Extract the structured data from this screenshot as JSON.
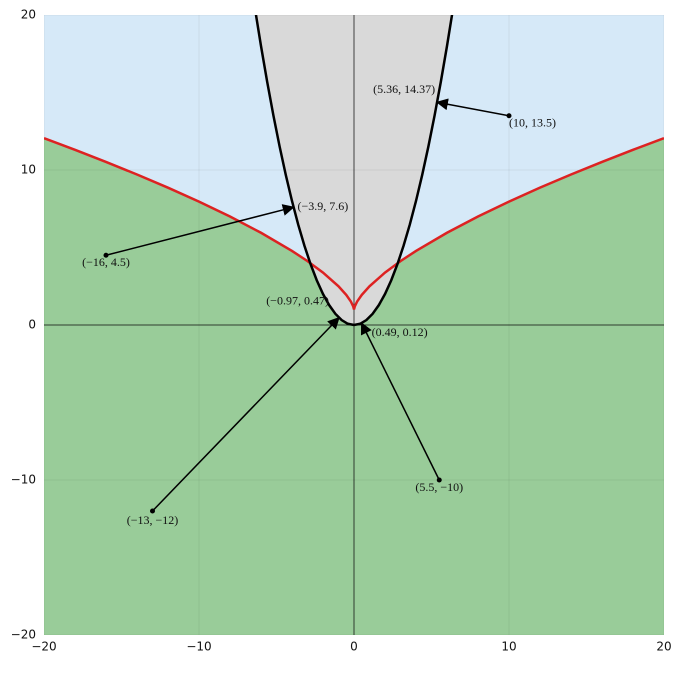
{
  "chart_data": {
    "type": "line",
    "xlim": [
      -20,
      20
    ],
    "ylim": [
      -20,
      20
    ],
    "xticks": [
      {
        "value": -20,
        "label": "−20"
      },
      {
        "value": -10,
        "label": "−10"
      },
      0,
      10,
      20
    ],
    "yticks": [
      {
        "value": -20,
        "label": "−20"
      },
      {
        "value": -10,
        "label": "−10"
      },
      0,
      10,
      20
    ],
    "grid": true,
    "background_color": "#99cc99",
    "series": [
      {
        "color": "#dd2222",
        "fill": "#d6e9f8",
        "fill_side": "above",
        "x": [
          -20,
          -18,
          -16,
          -14,
          -12,
          -10,
          -8,
          -6,
          -4,
          -3,
          -2,
          -1,
          -0.5,
          -0.2,
          -0.05,
          0,
          0.05,
          0.2,
          0.5,
          1,
          2,
          3,
          4,
          6,
          8,
          10,
          12,
          14,
          16,
          18,
          20
        ],
        "y": [
          12.05,
          11.3,
          10.52,
          9.71,
          8.86,
          7.96,
          7,
          5.95,
          4.78,
          4.12,
          3.38,
          2.5,
          1.94,
          1.51,
          1.2,
          1.0,
          1.2,
          1.51,
          1.94,
          2.5,
          3.38,
          4.12,
          4.78,
          5.95,
          7,
          7.96,
          8.86,
          9.71,
          10.52,
          11.3,
          12.05
        ]
      },
      {
        "color": "#000000",
        "fill": "#d9d9d9",
        "fill_side": "inside",
        "x": [
          -6.4,
          -6.0,
          -5.6,
          -5.2,
          -4.8,
          -4.4,
          -4.0,
          -3.6,
          -3.2,
          -2.8,
          -2.4,
          -2.0,
          -1.6,
          -1.2,
          -0.8,
          -0.4,
          0,
          0.4,
          0.8,
          1.2,
          1.6,
          2.0,
          2.4,
          2.8,
          3.2,
          3.6,
          4.0,
          4.4,
          4.8,
          5.2,
          5.6,
          6.0,
          6.4
        ],
        "y": [
          20.48,
          18,
          15.68,
          13.52,
          11.52,
          9.68,
          8,
          6.48,
          5.12,
          3.92,
          2.88,
          2,
          1.28,
          0.72,
          0.32,
          0.08,
          0,
          0.08,
          0.32,
          0.72,
          1.28,
          2,
          2.88,
          3.92,
          5.12,
          6.48,
          8,
          9.68,
          11.52,
          13.52,
          15.68,
          18,
          20.48
        ]
      }
    ],
    "annotations": [
      {
        "target": {
          "x": -3.9,
          "y": 7.6,
          "label": "(−3.9, 7.6)"
        },
        "source": {
          "x": -16,
          "y": 4.5,
          "label": "(−16, 4.5)"
        }
      },
      {
        "target": {
          "x": 5.36,
          "y": 14.37,
          "label": "(5.36, 14.37)"
        },
        "source": {
          "x": 10,
          "y": 13.5,
          "label": "(10, 13.5)"
        }
      },
      {
        "target": {
          "x": -0.97,
          "y": 0.47,
          "label": "(−0.97, 0.47)"
        },
        "source": {
          "x": -13,
          "y": -12,
          "label": "(−13, −12)"
        }
      },
      {
        "target": {
          "x": 0.49,
          "y": 0.12,
          "label": "(0.49, 0.12)"
        },
        "source": {
          "x": 5.5,
          "y": -10,
          "label": "(5.5, −10)"
        }
      }
    ]
  }
}
